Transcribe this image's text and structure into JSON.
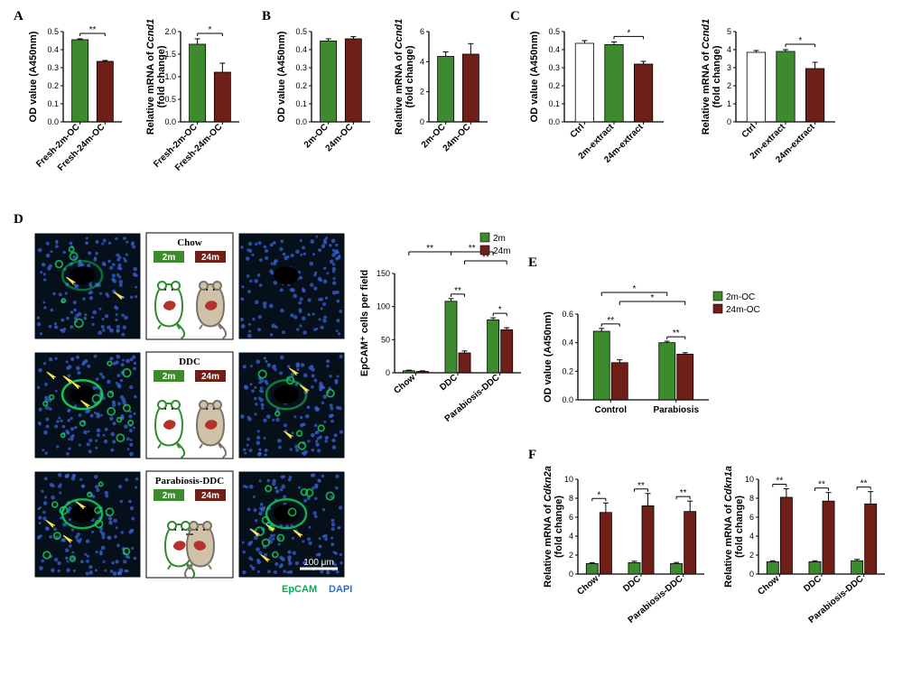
{
  "colors": {
    "green": "#3e8a2e",
    "maroon": "#6e1f17",
    "white": "#ffffff",
    "axis": "#000000",
    "bg": "#ffffff",
    "micro_bg": "#06101a",
    "micro_green": "#18d05a",
    "micro_nuclei": "#3a62d6",
    "arrow": "#ffe94a",
    "mouse_young_outline": "#2e8b2e",
    "mouse_old_fill": "#d0c2a8",
    "mouse_old_outline": "#7a736a",
    "liver": "#b5322c"
  },
  "panels": {
    "A": {
      "chart1": {
        "type": "bar",
        "ylabel": "OD value (A450nm)",
        "ylim": [
          0,
          0.5
        ],
        "ytick_step": 0.1,
        "categories": [
          "Fresh-2m-OC",
          "Fresh-24m-OC"
        ],
        "values": [
          0.455,
          0.335
        ],
        "errors": [
          0.005,
          0.005
        ],
        "bar_colors": [
          "#3e8a2e",
          "#6e1f17"
        ],
        "sig": [
          {
            "i": 0,
            "j": 1,
            "label": "**"
          }
        ]
      },
      "chart2": {
        "type": "bar",
        "ylabel": "Relative mRNA of ​Ccnd1\n(fold change)",
        "ylim": [
          0,
          2.0
        ],
        "ytick_step": 0.5,
        "categories": [
          "Fresh-2m-OC",
          "Fresh-24m-OC"
        ],
        "values": [
          1.72,
          1.1
        ],
        "errors": [
          0.12,
          0.2
        ],
        "bar_colors": [
          "#3e8a2e",
          "#6e1f17"
        ],
        "sig": [
          {
            "i": 0,
            "j": 1,
            "label": "*"
          }
        ]
      }
    },
    "B": {
      "chart1": {
        "type": "bar",
        "ylabel": "OD value (A450nm)",
        "ylim": [
          0,
          0.5
        ],
        "ytick_step": 0.1,
        "categories": [
          "2m-OC",
          "24m-OC"
        ],
        "values": [
          0.448,
          0.46
        ],
        "errors": [
          0.012,
          0.012
        ],
        "bar_colors": [
          "#3e8a2e",
          "#6e1f17"
        ],
        "sig": []
      },
      "chart2": {
        "type": "bar",
        "ylabel": "Relative mRNA of ​Ccnd1\n(fold change)",
        "ylim": [
          0,
          6
        ],
        "ytick_step": 2,
        "categories": [
          "2m-OC",
          "24m-OC"
        ],
        "values": [
          4.35,
          4.5
        ],
        "errors": [
          0.3,
          0.7
        ],
        "bar_colors": [
          "#3e8a2e",
          "#6e1f17"
        ],
        "sig": []
      }
    },
    "C": {
      "chart1": {
        "type": "bar",
        "ylabel": "OD value (A450nm)",
        "ylim": [
          0,
          0.5
        ],
        "ytick_step": 0.1,
        "categories": [
          "Ctrl",
          "2m-extract",
          "24m-extract"
        ],
        "values": [
          0.435,
          0.428,
          0.32
        ],
        "errors": [
          0.015,
          0.015,
          0.015
        ],
        "bar_colors": [
          "#ffffff",
          "#3e8a2e",
          "#6e1f17"
        ],
        "sig": [
          {
            "i": 1,
            "j": 2,
            "label": "*"
          }
        ]
      },
      "chart2": {
        "type": "bar",
        "ylabel": "Relative mRNA of ​Ccnd1\n(fold change)",
        "ylim": [
          0,
          5
        ],
        "ytick_step": 1,
        "categories": [
          "Ctrl",
          "2m-extract",
          "24m-extract"
        ],
        "values": [
          3.85,
          3.9,
          2.95
        ],
        "errors": [
          0.1,
          0.1,
          0.35
        ],
        "bar_colors": [
          "#ffffff",
          "#3e8a2e",
          "#6e1f17"
        ],
        "sig": [
          {
            "i": 1,
            "j": 2,
            "label": "*"
          }
        ]
      }
    },
    "D": {
      "micro_rows": [
        {
          "label": "Chow",
          "young": "2m",
          "old": "24m",
          "parabiosis": false,
          "young_arrows": 2,
          "old_arrows": 0,
          "young_signal": 0.2,
          "old_signal": 0.05
        },
        {
          "label": "DDC",
          "young": "2m",
          "old": "24m",
          "parabiosis": false,
          "young_arrows": 4,
          "old_arrows": 3,
          "young_signal": 0.95,
          "old_signal": 0.35
        },
        {
          "label": "Parabiosis-DDC",
          "young": "2m",
          "old": "24m",
          "parabiosis": true,
          "young_arrows": 3,
          "old_arrows": 4,
          "young_signal": 0.8,
          "old_signal": 0.75
        }
      ],
      "stain_labels": {
        "green": "EpCAM",
        "blue": "DAPI"
      },
      "scalebar": "100 μm",
      "barchart": {
        "type": "grouped-bar",
        "ylabel": "EpCAM⁺ cells per field",
        "ylim": [
          0,
          150
        ],
        "ytick_step": 50,
        "groups": [
          "Chow",
          "DDC",
          "Parabiosis-DDC"
        ],
        "series": [
          {
            "name": "2m",
            "color": "#3e8a2e",
            "values": [
              3,
              108,
              80
            ],
            "errors": [
              1,
              4,
              3
            ]
          },
          {
            "name": "24m",
            "color": "#6e1f17",
            "values": [
              2,
              30,
              65
            ],
            "errors": [
              1,
              3,
              3
            ]
          }
        ],
        "sig": [
          {
            "type": "within",
            "g": 1,
            "label": "**"
          },
          {
            "type": "within",
            "g": 2,
            "label": "*"
          },
          {
            "type": "between",
            "ga": 0,
            "gb": 1,
            "series": 0,
            "label": "**",
            "level": 2
          },
          {
            "type": "between",
            "ga": 1,
            "gb": 2,
            "series": 0,
            "label": "**",
            "level": 2
          },
          {
            "type": "between",
            "ga": 1,
            "gb": 2,
            "series": 1,
            "label": "**",
            "level": 1
          }
        ],
        "legend": [
          "2m",
          "24m"
        ],
        "legend_colors": [
          "#3e8a2e",
          "#6e1f17"
        ]
      }
    },
    "E": {
      "type": "grouped-bar",
      "ylabel": "OD value (A450nm)",
      "ylim": [
        0,
        0.6
      ],
      "ytick_step": 0.2,
      "groups": [
        "Control",
        "Parabiosis"
      ],
      "series": [
        {
          "name": "2m-OC",
          "color": "#3e8a2e",
          "values": [
            0.48,
            0.4
          ],
          "errors": [
            0.02,
            0.01
          ]
        },
        {
          "name": "24m-OC",
          "color": "#6e1f17",
          "values": [
            0.26,
            0.32
          ],
          "errors": [
            0.02,
            0.01
          ]
        }
      ],
      "sig": [
        {
          "type": "within",
          "g": 0,
          "label": "**"
        },
        {
          "type": "within",
          "g": 1,
          "label": "**"
        },
        {
          "type": "between",
          "ga": 0,
          "gb": 1,
          "series": 0,
          "label": "*",
          "level": 2
        },
        {
          "type": "between",
          "ga": 0,
          "gb": 1,
          "series": 1,
          "label": "*",
          "level": 1
        }
      ],
      "legend": [
        "2m-OC",
        "24m-OC"
      ],
      "legend_colors": [
        "#3e8a2e",
        "#6e1f17"
      ]
    },
    "F": {
      "chart1": {
        "type": "grouped-bar",
        "ylabel": "Relative mRNA of ​Cdkn2a\n(fold change)",
        "ylim": [
          0,
          10
        ],
        "ytick_step": 2,
        "groups": [
          "Chow",
          "DDC",
          "Parabiosis-DDC"
        ],
        "series": [
          {
            "name": "2m",
            "color": "#3e8a2e",
            "values": [
              1.1,
              1.2,
              1.1
            ],
            "errors": [
              0.1,
              0.15,
              0.12
            ]
          },
          {
            "name": "24m",
            "color": "#6e1f17",
            "values": [
              6.5,
              7.2,
              6.6
            ],
            "errors": [
              1.0,
              1.3,
              1.1
            ]
          }
        ],
        "sig": [
          {
            "type": "within",
            "g": 0,
            "label": "*"
          },
          {
            "type": "within",
            "g": 1,
            "label": "**"
          },
          {
            "type": "within",
            "g": 2,
            "label": "**"
          }
        ]
      },
      "chart2": {
        "type": "grouped-bar",
        "ylabel": "Relative mRNA of ​Cdkn1a\n(fold change)",
        "ylim": [
          0,
          10
        ],
        "ytick_step": 2,
        "groups": [
          "Chow",
          "DDC",
          "Parabiosis-DDC"
        ],
        "series": [
          {
            "name": "2m",
            "color": "#3e8a2e",
            "values": [
              1.3,
              1.3,
              1.4
            ],
            "errors": [
              0.1,
              0.1,
              0.15
            ]
          },
          {
            "name": "24m",
            "color": "#6e1f17",
            "values": [
              8.1,
              7.7,
              7.4
            ],
            "errors": [
              0.9,
              0.9,
              1.3
            ]
          }
        ],
        "sig": [
          {
            "type": "within",
            "g": 0,
            "label": "**"
          },
          {
            "type": "within",
            "g": 1,
            "label": "**"
          },
          {
            "type": "within",
            "g": 2,
            "label": "**"
          }
        ]
      }
    }
  }
}
